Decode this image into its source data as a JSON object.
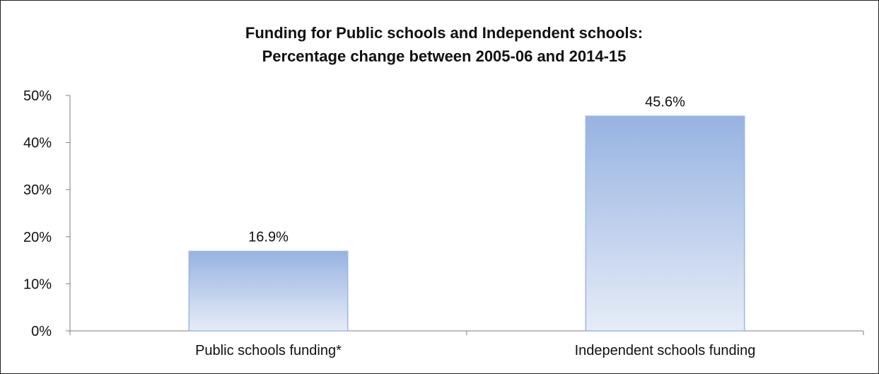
{
  "chart_data": {
    "type": "bar",
    "title_lines": [
      "Funding for Public schools and Independent schools:",
      "Percentage change between 2005-06 and 2014-15"
    ],
    "categories": [
      "Public schools funding*",
      "Independent schools funding"
    ],
    "values": [
      16.9,
      45.6
    ],
    "data_labels": [
      "16.9%",
      "45.6%"
    ],
    "y_ticks": [
      0,
      10,
      20,
      30,
      40,
      50
    ],
    "y_tick_labels": [
      "0%",
      "10%",
      "20%",
      "30%",
      "40%",
      "50%"
    ],
    "ylim": [
      0,
      50
    ],
    "xlabel": "",
    "ylabel": "",
    "grid": false,
    "legend": "none",
    "colors": {
      "bar_top": "#97b3e2",
      "bar_bottom": "#e6ecf7",
      "bar_stroke": "#9ab7e4",
      "axis": "#7f7f7f"
    }
  }
}
